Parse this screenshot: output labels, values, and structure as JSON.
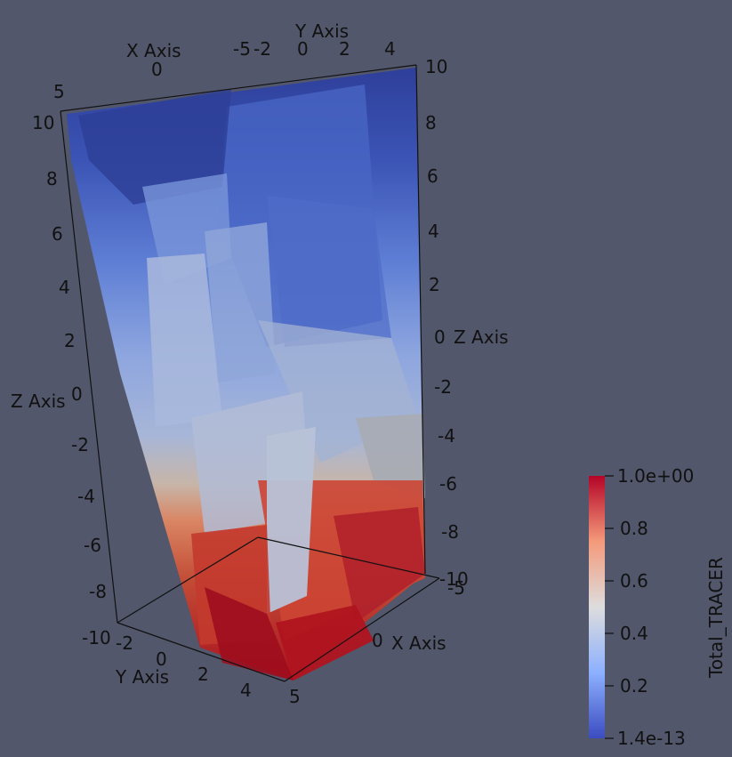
{
  "scene": {
    "background_color": "#52576b",
    "colormap": "Cool to Warm",
    "colormap_stops": [
      "#3b4cc0",
      "#8db0fe",
      "#dddddd",
      "#f49a7b",
      "#b40426"
    ]
  },
  "axes": {
    "x_top": {
      "title": "X Axis",
      "ticks": [
        "5",
        "0"
      ]
    },
    "y_top": {
      "title": "Y Axis",
      "ticks": [
        "-5",
        "-2",
        "0",
        "2",
        "4"
      ]
    },
    "z_left": {
      "title": "Z Axis",
      "ticks": [
        "10",
        "8",
        "6",
        "4",
        "2",
        "0",
        "-2",
        "-4",
        "-6",
        "-8",
        "-10"
      ]
    },
    "z_right": {
      "title": "Z Axis",
      "ticks": [
        "10",
        "8",
        "6",
        "4",
        "2",
        "0",
        "-2",
        "-4",
        "-6",
        "-8",
        "-10"
      ]
    },
    "y_bottom": {
      "title": "Y Axis",
      "ticks": [
        "-2",
        "0",
        "2",
        "4"
      ]
    },
    "x_bottom": {
      "title": "X Axis",
      "ticks": [
        "-5",
        "0",
        "5"
      ]
    }
  },
  "colorbar": {
    "title": "Total_TRACER",
    "max_label": "1.0e+00",
    "min_label": "1.4e-13",
    "tick_labels": [
      "0.8",
      "0.6",
      "0.4",
      "0.2"
    ]
  }
}
